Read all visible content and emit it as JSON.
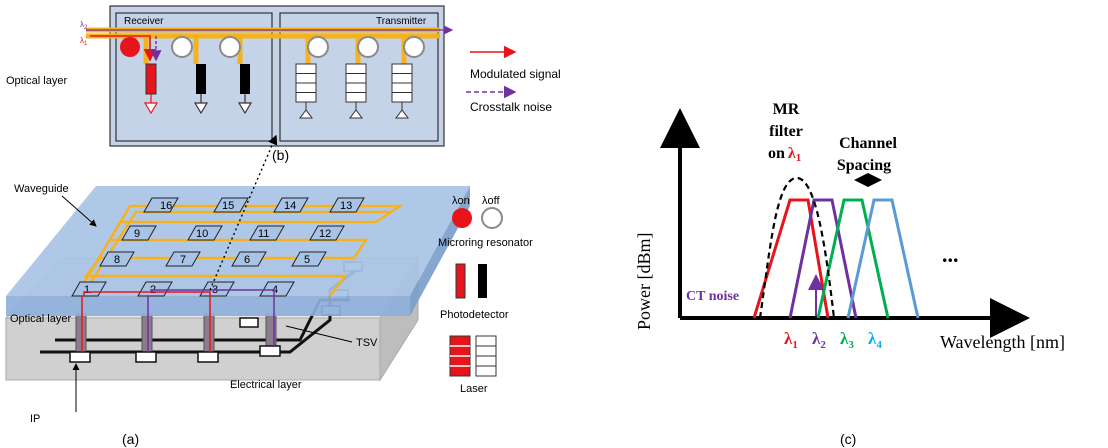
{
  "panel_a": {
    "optical_layer_top": "Optical layer",
    "receiver": "Receiver",
    "transmitter": "Transmitter",
    "lambda2": "λ",
    "lambda2_sub": "2",
    "lambda1": "λ",
    "lambda1_sub": "1",
    "legend_modulated": "Modulated signal",
    "legend_crosstalk": "Crosstalk noise",
    "label_b": "(b)",
    "waveguide": "Waveguide",
    "lambda_on": "λon",
    "lambda_off": "λoff",
    "microring": "Microring resonator",
    "photodetector": "Photodetector",
    "laser": "Laser",
    "tsv": "TSV",
    "optical_layer": "Optical layer",
    "electrical_layer": "Electrical layer",
    "ip": "IP",
    "label_a": "(a)",
    "nodes": [
      "16",
      "15",
      "14",
      "13",
      "9",
      "10",
      "11",
      "12",
      "8",
      "7",
      "6",
      "5",
      "1",
      "2",
      "3",
      "4"
    ],
    "colors": {
      "red": "#e8141b",
      "purple": "#7030a0",
      "orange": "#f5b21c",
      "blue": "#b4c7e7"
    }
  },
  "panel_c": {
    "mr_filter_l1": "MR",
    "mr_filter_l2": "filter",
    "mr_filter_l3": "on",
    "mr_lambda": "λ",
    "mr_lambda_sub": "1",
    "channel_l1": "Channel",
    "channel_l2": "Spacing",
    "ylabel": "Power  [dBm]",
    "xlabel": "Wavelength  [nm]",
    "ct_noise": "CT noise",
    "ellipsis": "...",
    "lambdas": [
      {
        "sym": "λ",
        "sub": "1",
        "color": "#e8141b"
      },
      {
        "sym": "λ",
        "sub": "2",
        "color": "#7030a0"
      },
      {
        "sym": "λ",
        "sub": "3",
        "color": "#00b050"
      },
      {
        "sym": "λ",
        "sub": "4",
        "color": "#00b0f0"
      }
    ],
    "label_c": "(c)"
  }
}
